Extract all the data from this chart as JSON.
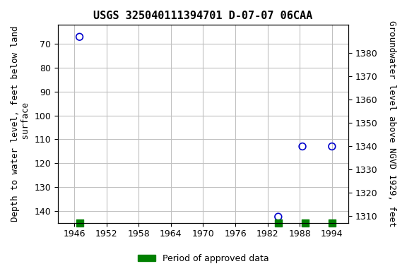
{
  "title": "USGS 325040111394701 D-07-07 06CAA",
  "data_points": [
    {
      "year": 1947.0,
      "depth": 67.0
    },
    {
      "year": 1984.0,
      "depth": 142.5
    },
    {
      "year": 1988.5,
      "depth": 113.0
    },
    {
      "year": 1994.0,
      "depth": 113.0
    }
  ],
  "approved_periods": [
    {
      "year": 1947.0
    },
    {
      "year": 1984.0
    },
    {
      "year": 1989.0
    },
    {
      "year": 1994.0
    }
  ],
  "xlim": [
    1943,
    1997
  ],
  "xticks": [
    1946,
    1952,
    1958,
    1964,
    1970,
    1976,
    1982,
    1988,
    1994
  ],
  "ylim_left": [
    145,
    62
  ],
  "yticks_left": [
    70,
    80,
    90,
    100,
    110,
    120,
    130,
    140
  ],
  "ylim_right": [
    1307,
    1392
  ],
  "yticks_right": [
    1310,
    1320,
    1330,
    1340,
    1350,
    1360,
    1370,
    1380
  ],
  "ylabel_left": "Depth to water level, feet below land\n surface",
  "ylabel_right": "Groundwater level above NGVD 1929, feet",
  "legend_label": "Period of approved data",
  "marker_color": "#0000cc",
  "approved_color": "#008000",
  "bg_color": "#ffffff",
  "grid_color": "#c0c0c0",
  "title_fontsize": 11,
  "label_fontsize": 9,
  "tick_fontsize": 9,
  "marker_size": 7,
  "approved_square_size": 60
}
